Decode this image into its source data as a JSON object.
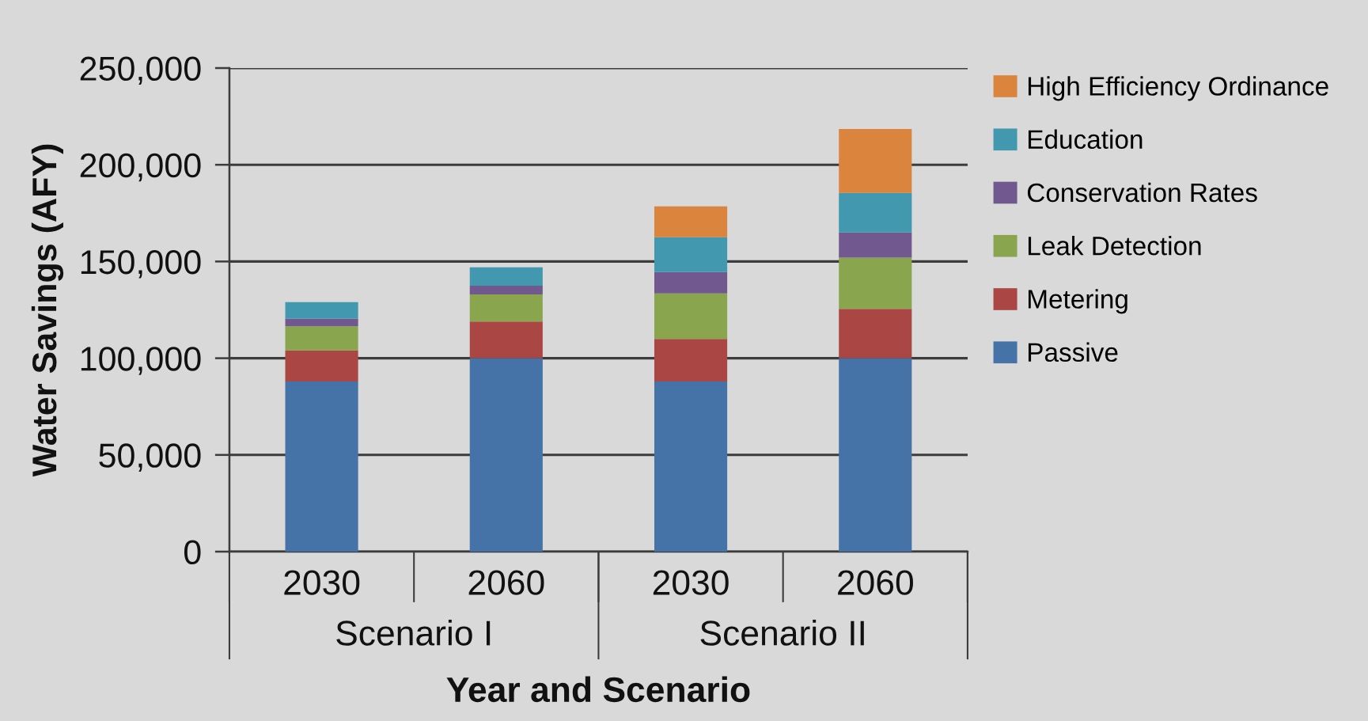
{
  "chart_data": {
    "type": "bar",
    "stacked": true,
    "xlabel": "Year and Scenario",
    "ylabel": "Water Savings (AFY)",
    "categories": [
      "2030",
      "2060",
      "2030",
      "2060"
    ],
    "annotations": [
      "Scenario I",
      "Scenario II"
    ],
    "series": [
      {
        "name": "Passive",
        "color": "#4572a7",
        "values": [
          88000,
          100000,
          88000,
          100000
        ]
      },
      {
        "name": "Metering",
        "color": "#aa4643",
        "values": [
          16000,
          19000,
          22000,
          25500
        ]
      },
      {
        "name": "Leak Detection",
        "color": "#89a54e",
        "values": [
          12500,
          14000,
          23500,
          26500
        ]
      },
      {
        "name": "Conservation Rates",
        "color": "#71588f",
        "values": [
          4000,
          4500,
          11000,
          13000
        ]
      },
      {
        "name": "Education",
        "color": "#4198af",
        "values": [
          8500,
          9500,
          18000,
          20500
        ]
      },
      {
        "name": "High Efficiency Ordinance",
        "color": "#db843d",
        "values": [
          null,
          null,
          16000,
          33000
        ]
      }
    ],
    "ylim": [
      0,
      250000
    ],
    "yticks": [
      0,
      {
        "value": 50000,
        "label": "50,000"
      },
      {
        "value": 100000,
        "label": "100,000"
      },
      {
        "value": 150000,
        "label": "150,000"
      },
      {
        "value": 200000,
        "label": "200,000"
      },
      {
        "value": 250000,
        "label": "250,000"
      }
    ],
    "grid": "y",
    "legend": "top right"
  }
}
